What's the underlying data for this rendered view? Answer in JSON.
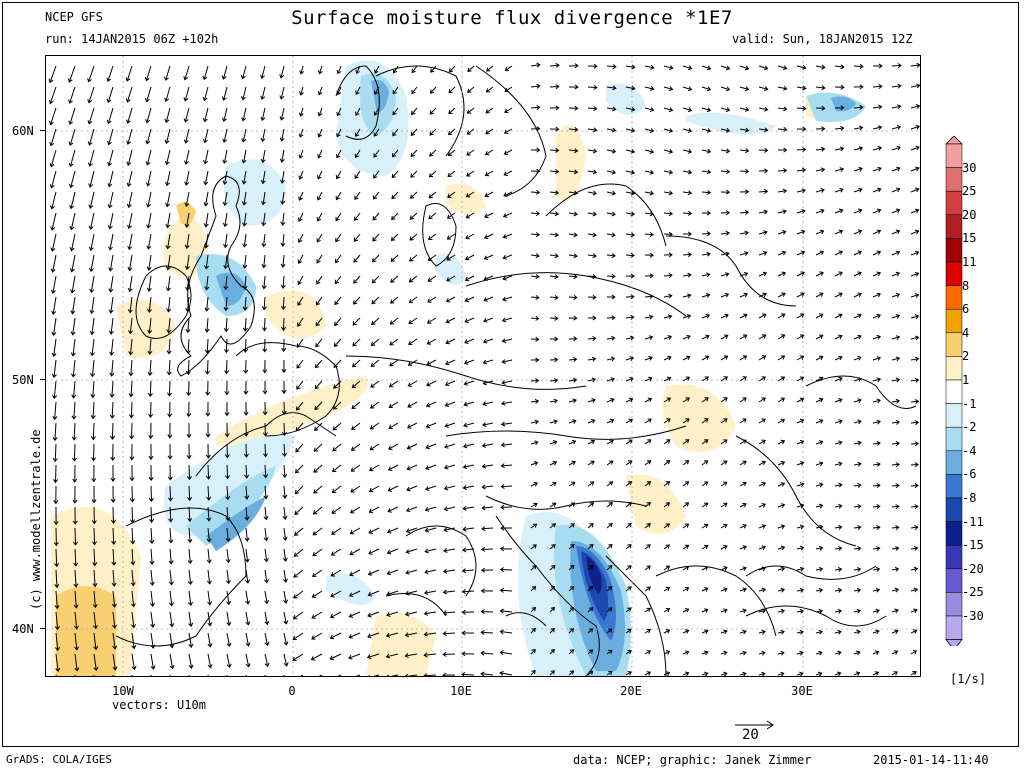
{
  "header": {
    "model": "NCEP GFS",
    "run": "run: 14JAN2015 06Z +102h",
    "title": "Surface moisture flux divergence *1E7",
    "valid": "valid: Sun, 18JAN2015 12Z"
  },
  "axes": {
    "lat_labels": [
      "60N",
      "50N",
      "40N"
    ],
    "lon_labels": [
      "10W",
      "0",
      "10E",
      "20E",
      "30E"
    ]
  },
  "vectors_label": "vectors: U10m",
  "vector_scale": "20",
  "watermark": "(c) www.modellzentrale.de",
  "colorbar": {
    "levels": [
      "30",
      "25",
      "20",
      "15",
      "11",
      "8",
      "6",
      "4",
      "2",
      "1",
      "-1",
      "-2",
      "-4",
      "-6",
      "-8",
      "-11",
      "-15",
      "-20",
      "-25",
      "-30"
    ],
    "colors": [
      "#f0a0a0",
      "#e07070",
      "#d04040",
      "#b02020",
      "#a00000",
      "#e00000",
      "#ff6a00",
      "#f0a000",
      "#f8d070",
      "#fff0c8",
      "#ffffff",
      "#d8f0fa",
      "#a8dcf0",
      "#6aaee0",
      "#3a78d0",
      "#1a4ab0",
      "#10208a",
      "#3a36b8",
      "#6a5ad0",
      "#9a8ae0",
      "#b8a8f0"
    ],
    "unit": "[1/s]"
  },
  "footer": {
    "grads": "GrADS: COLA/IGES",
    "credit": "data: NCEP; graphic: Janek Zimmer",
    "timestamp": "2015-01-14-11:40"
  }
}
